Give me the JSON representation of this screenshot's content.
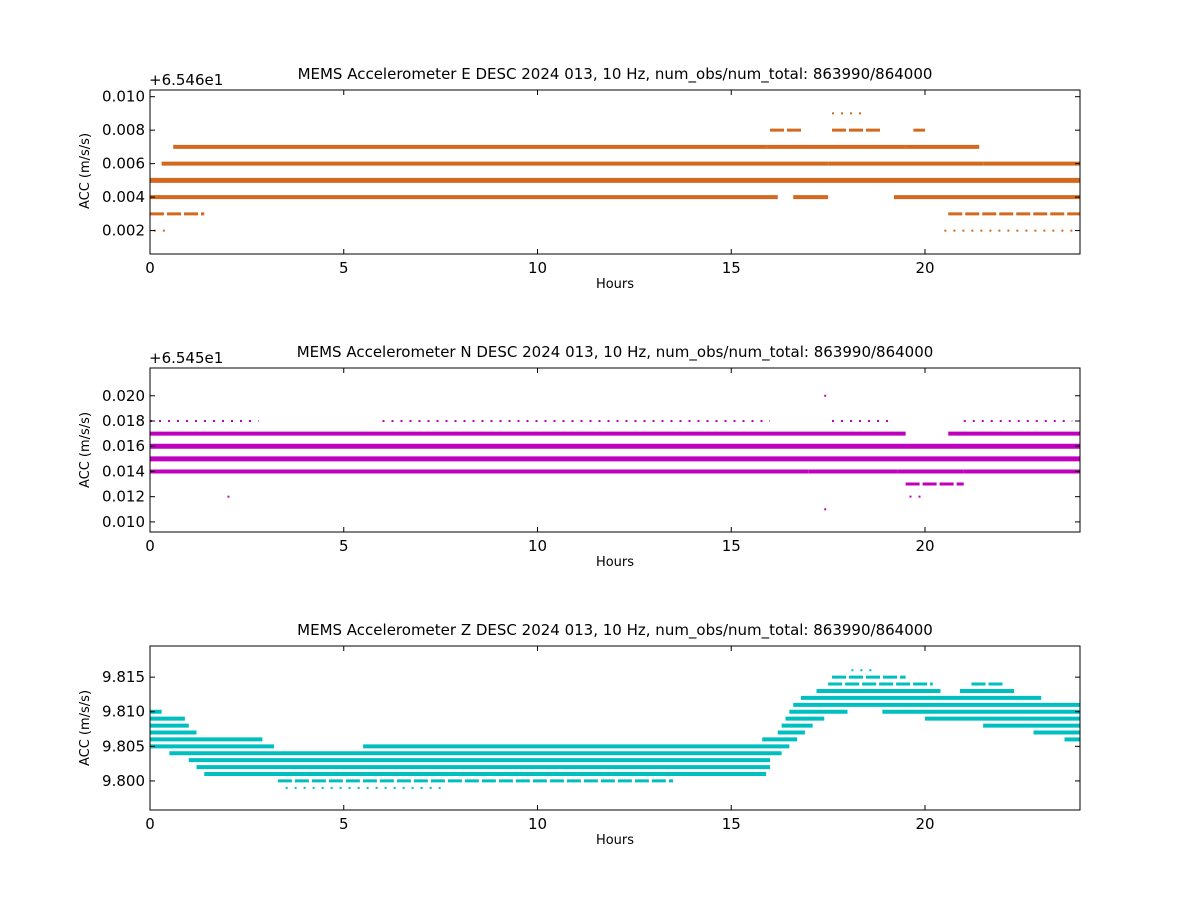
{
  "chart_data": [
    {
      "type": "scatter",
      "title": "MEMS Accelerometer E DESC 2024 013, 10 Hz, num_obs/num_total: 863990/864000",
      "xlabel": "Hours",
      "ylabel": "ACC (m/s/s)",
      "offset_text": "+6.546e1",
      "color": "#d2691e",
      "xlim": [
        0,
        24
      ],
      "ylim": [
        0.0006,
        0.0104
      ],
      "xticks": [
        0,
        5,
        10,
        15,
        20
      ],
      "yticks": [
        0.002,
        0.004,
        0.006,
        0.008,
        0.01
      ],
      "ytick_labels": [
        "0.002",
        "0.004",
        "0.006",
        "0.008",
        "0.010"
      ],
      "series": [
        {
          "y": 0.009,
          "segments": [
            [
              17.6,
              18.4
            ]
          ],
          "density": "sparse"
        },
        {
          "y": 0.008,
          "segments": [
            [
              16.0,
              16.8
            ],
            [
              17.6,
              18.9
            ],
            [
              19.7,
              20.0
            ]
          ],
          "density": "medium"
        },
        {
          "y": 0.007,
          "segments": [
            [
              0.6,
              15.9
            ],
            [
              15.9,
              19.5
            ],
            [
              19.5,
              21.4
            ]
          ],
          "density": "dense"
        },
        {
          "y": 0.006,
          "segments": [
            [
              0.3,
              17.5
            ],
            [
              17.5,
              21.5
            ],
            [
              21.5,
              24.0
            ]
          ],
          "density": "dense"
        },
        {
          "y": 0.005,
          "segments": [
            [
              0.0,
              24.0
            ]
          ],
          "density": "solid"
        },
        {
          "y": 0.004,
          "segments": [
            [
              0.0,
              16.2
            ],
            [
              16.6,
              17.5
            ],
            [
              19.2,
              24.0
            ]
          ],
          "density": "dense"
        },
        {
          "y": 0.003,
          "segments": [
            [
              0.0,
              1.4
            ],
            [
              20.6,
              24.0
            ]
          ],
          "density": "medium"
        },
        {
          "y": 0.002,
          "segments": [
            [
              0.1,
              0.4
            ],
            [
              20.5,
              23.9
            ]
          ],
          "density": "sparse"
        }
      ]
    },
    {
      "type": "scatter",
      "title": "MEMS Accelerometer N DESC 2024 013, 10 Hz, num_obs/num_total: 863990/864000",
      "xlabel": "Hours",
      "ylabel": "ACC (m/s/s)",
      "offset_text": "+6.545e1",
      "color": "#bf00bf",
      "xlim": [
        0,
        24
      ],
      "ylim": [
        0.0092,
        0.0222
      ],
      "xticks": [
        0,
        5,
        10,
        15,
        20
      ],
      "yticks": [
        0.01,
        0.012,
        0.014,
        0.016,
        0.018,
        0.02
      ],
      "ytick_labels": [
        "0.010",
        "0.012",
        "0.014",
        "0.016",
        "0.018",
        "0.020"
      ],
      "series": [
        {
          "y": 0.02,
          "segments": [
            [
              17.4,
              17.45
            ]
          ],
          "density": "sparse"
        },
        {
          "y": 0.018,
          "segments": [
            [
              0.0,
              2.8
            ],
            [
              6.0,
              16.0
            ],
            [
              17.6,
              19.2
            ],
            [
              21.0,
              23.8
            ]
          ],
          "density": "sparse"
        },
        {
          "y": 0.017,
          "segments": [
            [
              0.0,
              17.6
            ],
            [
              17.6,
              19.5
            ],
            [
              20.6,
              24.0
            ]
          ],
          "density": "dense"
        },
        {
          "y": 0.016,
          "segments": [
            [
              0.0,
              24.0
            ]
          ],
          "density": "solid"
        },
        {
          "y": 0.015,
          "segments": [
            [
              0.0,
              24.0
            ]
          ],
          "density": "solid"
        },
        {
          "y": 0.014,
          "segments": [
            [
              0.0,
              17.0
            ],
            [
              17.0,
              19.3
            ],
            [
              19.3,
              21.0
            ],
            [
              21.0,
              24.0
            ]
          ],
          "density": "dense"
        },
        {
          "y": 0.013,
          "segments": [
            [
              19.5,
              21.0
            ]
          ],
          "density": "medium"
        },
        {
          "y": 0.012,
          "segments": [
            [
              2.0,
              2.05
            ],
            [
              19.6,
              19.9
            ]
          ],
          "density": "sparse"
        },
        {
          "y": 0.011,
          "segments": [
            [
              17.4,
              17.45
            ]
          ],
          "density": "sparse"
        }
      ]
    },
    {
      "type": "scatter",
      "title": "MEMS Accelerometer Z DESC 2024 013, 10 Hz, num_obs/num_total: 863990/864000",
      "xlabel": "Hours",
      "ylabel": "ACC (m/s/s)",
      "offset_text": "",
      "color": "#00bfbf",
      "xlim": [
        0,
        24
      ],
      "ylim": [
        9.7958,
        9.8195
      ],
      "xticks": [
        0,
        5,
        10,
        15,
        20
      ],
      "yticks": [
        9.8,
        9.805,
        9.81,
        9.815
      ],
      "ytick_labels": [
        "9.800",
        "9.805",
        "9.810",
        "9.815"
      ],
      "series": [
        {
          "y": 9.816,
          "segments": [
            [
              18.1,
              18.7
            ]
          ],
          "density": "sparse"
        },
        {
          "y": 9.815,
          "segments": [
            [
              17.6,
              19.5
            ]
          ],
          "density": "medium"
        },
        {
          "y": 9.814,
          "segments": [
            [
              17.5,
              20.2
            ],
            [
              21.2,
              22.0
            ]
          ],
          "density": "medium"
        },
        {
          "y": 9.813,
          "segments": [
            [
              17.2,
              20.4
            ],
            [
              20.9,
              22.3
            ]
          ],
          "density": "dense"
        },
        {
          "y": 9.812,
          "segments": [
            [
              16.8,
              23.0
            ]
          ],
          "density": "dense"
        },
        {
          "y": 9.811,
          "segments": [
            [
              16.6,
              24.0
            ]
          ],
          "density": "dense"
        },
        {
          "y": 9.81,
          "segments": [
            [
              0.0,
              0.3
            ],
            [
              16.5,
              18.0
            ],
            [
              18.9,
              24.0
            ]
          ],
          "density": "dense"
        },
        {
          "y": 9.809,
          "segments": [
            [
              0.0,
              0.9
            ],
            [
              16.4,
              17.4
            ],
            [
              20.0,
              24.0
            ]
          ],
          "density": "dense"
        },
        {
          "y": 9.808,
          "segments": [
            [
              0.0,
              1.0
            ],
            [
              16.3,
              17.1
            ],
            [
              21.5,
              24.0
            ]
          ],
          "density": "dense"
        },
        {
          "y": 9.807,
          "segments": [
            [
              0.0,
              1.2
            ],
            [
              16.2,
              16.9
            ],
            [
              22.8,
              24.0
            ]
          ],
          "density": "dense"
        },
        {
          "y": 9.806,
          "segments": [
            [
              0.0,
              2.9
            ],
            [
              15.8,
              16.7
            ],
            [
              23.6,
              24.0
            ]
          ],
          "density": "dense"
        },
        {
          "y": 9.805,
          "segments": [
            [
              0.0,
              3.2
            ],
            [
              5.5,
              16.5
            ]
          ],
          "density": "dense"
        },
        {
          "y": 9.804,
          "segments": [
            [
              0.5,
              16.3
            ]
          ],
          "density": "dense"
        },
        {
          "y": 9.803,
          "segments": [
            [
              1.0,
              16.0
            ]
          ],
          "density": "dense"
        },
        {
          "y": 9.802,
          "segments": [
            [
              1.2,
              16.0
            ]
          ],
          "density": "dense"
        },
        {
          "y": 9.801,
          "segments": [
            [
              1.4,
              15.9
            ]
          ],
          "density": "dense"
        },
        {
          "y": 9.8,
          "segments": [
            [
              3.3,
              13.5
            ]
          ],
          "density": "medium"
        },
        {
          "y": 9.799,
          "segments": [
            [
              3.5,
              7.5
            ]
          ],
          "density": "sparse"
        }
      ]
    }
  ]
}
